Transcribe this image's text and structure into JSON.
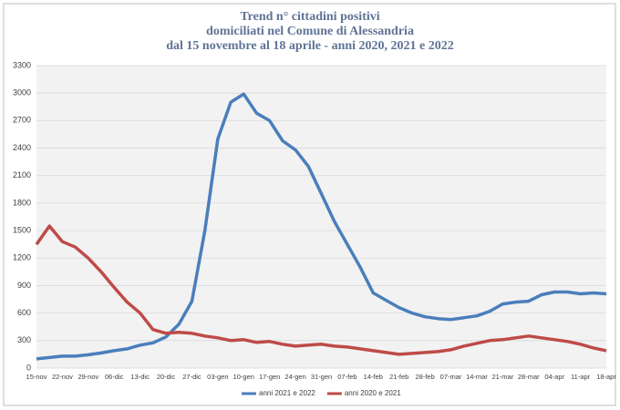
{
  "chart_data": {
    "type": "line",
    "title": [
      "Trend n° cittadini positivi",
      "domiciliati nel Comune di Alessandria",
      "dal 15 novembre al 18 aprile - anni 2020, 2021 e 2022"
    ],
    "categories": [
      "15-nov",
      null,
      "22-nov",
      null,
      "29-nov",
      null,
      "06-dic",
      null,
      "13-dic",
      null,
      "20-dic",
      null,
      "27-dic",
      null,
      "03-gen",
      null,
      "10-gen",
      null,
      "17-gen",
      null,
      "24-gen",
      null,
      "31-gen",
      null,
      "07-feb",
      null,
      "14-feb",
      null,
      "21-feb",
      null,
      "28-feb",
      null,
      "07-mar",
      null,
      "14-mar",
      null,
      "21-mar",
      null,
      "28-mar",
      null,
      "04-apr",
      null,
      "11-apr",
      null,
      "18-apr"
    ],
    "series": [
      {
        "name": "anni 2021 e 2022",
        "color": "#4a7ebb",
        "values": [
          100,
          115,
          130,
          130,
          145,
          165,
          190,
          210,
          250,
          275,
          340,
          480,
          730,
          1500,
          2500,
          2900,
          2990,
          2780,
          2700,
          2480,
          2380,
          2200,
          1900,
          1600,
          1350,
          1100,
          820,
          740,
          660,
          600,
          560,
          540,
          530,
          550,
          570,
          620,
          700,
          720,
          730,
          800,
          830,
          830,
          810,
          820,
          810
        ]
      },
      {
        "name": "anni 2020 e 2021",
        "color": "#be4b48",
        "values": [
          1350,
          1550,
          1380,
          1320,
          1200,
          1050,
          880,
          720,
          600,
          420,
          380,
          390,
          380,
          350,
          330,
          300,
          310,
          280,
          290,
          260,
          240,
          250,
          260,
          240,
          230,
          210,
          190,
          170,
          150,
          160,
          170,
          180,
          200,
          240,
          270,
          300,
          310,
          330,
          350,
          330,
          310,
          290,
          260,
          220,
          190
        ]
      }
    ],
    "ylim": [
      0,
      3300
    ],
    "yticks": [
      0,
      300,
      600,
      900,
      1200,
      1500,
      1800,
      2100,
      2400,
      2700,
      3000,
      3300
    ],
    "grid": true
  }
}
